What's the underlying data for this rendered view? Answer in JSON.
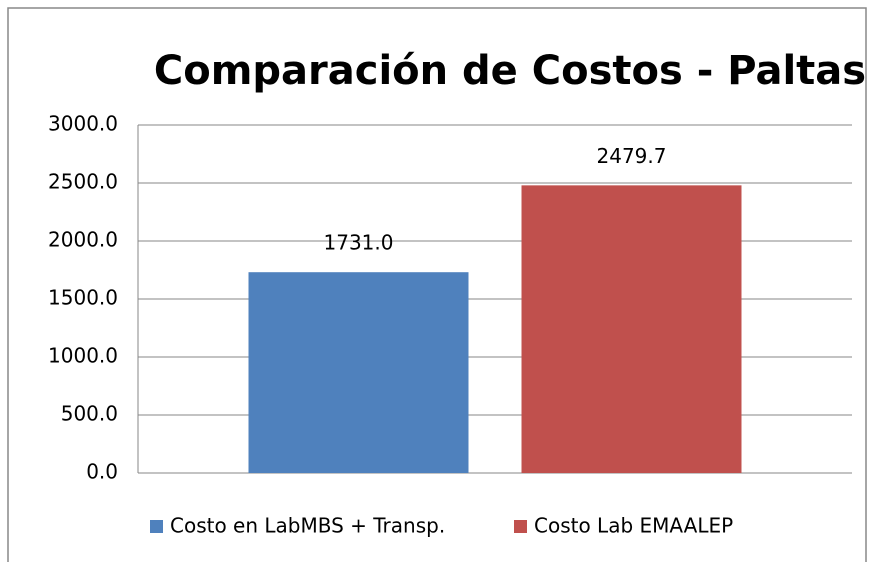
{
  "chart_data": {
    "type": "bar",
    "title": "Comparación de Costos - Paltas",
    "categories": [
      null
    ],
    "series": [
      {
        "name": "Costo en LabMBS + Transp.",
        "color": "#4f81bd",
        "values": [
          1731.0
        ],
        "value_labels": [
          "1731.0"
        ]
      },
      {
        "name": "Costo Lab EMAALEP",
        "color": "#c0504d",
        "values": [
          2479.7
        ],
        "value_labels": [
          "2479.7"
        ]
      }
    ],
    "ylim": [
      0,
      3000
    ],
    "yticks": [
      {
        "value": 0,
        "label": "0.0"
      },
      {
        "value": 500,
        "label": "500.0"
      },
      {
        "value": 1000,
        "label": "1000.0"
      },
      {
        "value": 1500,
        "label": "1500.0"
      },
      {
        "value": 2000,
        "label": "2000.0"
      },
      {
        "value": 2500,
        "label": "2500.0"
      },
      {
        "value": 3000,
        "label": "3000.0"
      }
    ],
    "grid": true,
    "legend": "bottom"
  }
}
